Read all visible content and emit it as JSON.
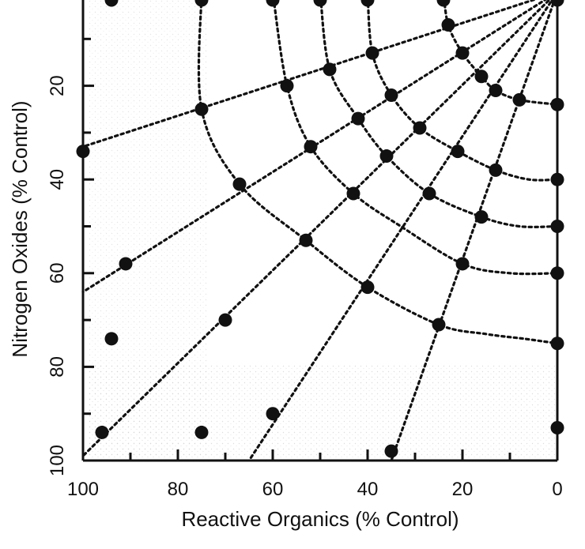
{
  "chart_data": {
    "type": "scatter",
    "title": "",
    "xlabel": "Reactive Organics (% Control)",
    "ylabel": "Nitrogen Oxides (% Control)",
    "xlim": [
      100,
      0
    ],
    "ylim": [
      0,
      100
    ],
    "x_reversed": true,
    "y_reversed": true,
    "x_ticks": [
      100,
      80,
      60,
      40,
      20,
      0
    ],
    "y_ticks": [
      20,
      40,
      60,
      80,
      100
    ],
    "x_tick_labels": [
      "100",
      "80",
      "60",
      "40",
      "20",
      "0"
    ],
    "y_tick_labels": [
      "20",
      "40",
      "60",
      "80",
      "100"
    ],
    "grid": false,
    "background": "light stipple shading near the left and bottom of the plot",
    "marker_color": "#111111",
    "line_color": "#111111",
    "points": [
      [
        94,
        0
      ],
      [
        75,
        0
      ],
      [
        60,
        0
      ],
      [
        50,
        0
      ],
      [
        40,
        0
      ],
      [
        24,
        0
      ],
      [
        0,
        0
      ],
      [
        100,
        34
      ],
      [
        75,
        25
      ],
      [
        57,
        20
      ],
      [
        48,
        16.5
      ],
      [
        39,
        13
      ],
      [
        23,
        7
      ],
      [
        20,
        13
      ],
      [
        16,
        18
      ],
      [
        13,
        21
      ],
      [
        8,
        23
      ],
      [
        0,
        24
      ],
      [
        67,
        41
      ],
      [
        52,
        33
      ],
      [
        42,
        27
      ],
      [
        35,
        22
      ],
      [
        29,
        29
      ],
      [
        21,
        34
      ],
      [
        13,
        38
      ],
      [
        0,
        40
      ],
      [
        91,
        58
      ],
      [
        53,
        53
      ],
      [
        43,
        43
      ],
      [
        36,
        35
      ],
      [
        27,
        43
      ],
      [
        16,
        48
      ],
      [
        0,
        50
      ],
      [
        40,
        63
      ],
      [
        20,
        58
      ],
      [
        0,
        60
      ],
      [
        94,
        74
      ],
      [
        70,
        70
      ],
      [
        25,
        71
      ],
      [
        0,
        75
      ],
      [
        96,
        94
      ],
      [
        75,
        94
      ],
      [
        60,
        90
      ],
      [
        35,
        98
      ],
      [
        0,
        93
      ]
    ],
    "radial_lines": [
      {
        "from": [
          0,
          0
        ],
        "to": [
          100,
          33
        ]
      },
      {
        "from": [
          0,
          0
        ],
        "to": [
          100,
          64
        ]
      },
      {
        "from": [
          0,
          0
        ],
        "to": [
          100,
          99
        ]
      },
      {
        "from": [
          0,
          0
        ],
        "to": [
          65,
          100
        ]
      },
      {
        "from": [
          0,
          0
        ],
        "to": [
          35,
          100
        ]
      }
    ],
    "arc_lines": [
      [
        [
          75,
          0
        ],
        [
          75,
          25
        ],
        [
          67,
          41
        ],
        [
          53,
          53
        ],
        [
          40,
          63
        ],
        [
          25,
          71
        ],
        [
          15,
          73
        ],
        [
          7,
          74
        ],
        [
          0,
          75
        ]
      ],
      [
        [
          60,
          0
        ],
        [
          57,
          20
        ],
        [
          52,
          33
        ],
        [
          43,
          43
        ],
        [
          33,
          50
        ],
        [
          20,
          58
        ],
        [
          10,
          60
        ],
        [
          0,
          60
        ]
      ],
      [
        [
          50,
          0
        ],
        [
          48,
          16.5
        ],
        [
          42,
          27
        ],
        [
          36,
          35
        ],
        [
          27,
          43
        ],
        [
          16,
          48
        ],
        [
          8,
          50
        ],
        [
          0,
          50
        ]
      ],
      [
        [
          40,
          0
        ],
        [
          39,
          13
        ],
        [
          35,
          22
        ],
        [
          29,
          29
        ],
        [
          21,
          34
        ],
        [
          13,
          38
        ],
        [
          6,
          40
        ],
        [
          0,
          40
        ]
      ],
      [
        [
          24,
          0
        ],
        [
          23,
          7
        ],
        [
          20,
          13
        ],
        [
          16,
          18
        ],
        [
          13,
          21
        ],
        [
          8,
          23
        ],
        [
          0,
          24
        ]
      ]
    ]
  }
}
